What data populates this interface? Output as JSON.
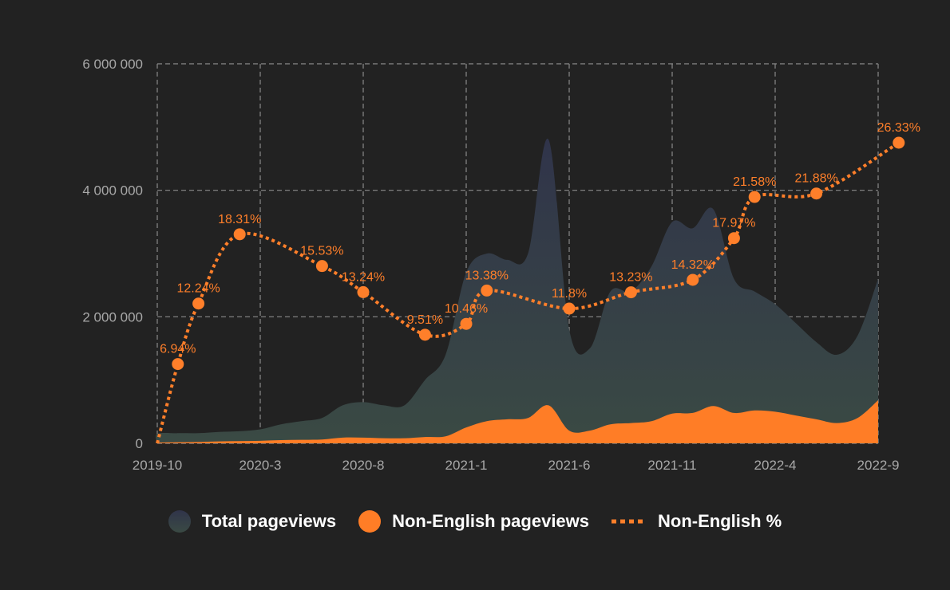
{
  "chart_data": {
    "type": "area",
    "y_axis": {
      "ticks": [
        "0",
        "2 000 000",
        "4 000 000",
        "6 000 000"
      ],
      "tick_values": [
        0,
        2000000,
        4000000,
        6000000
      ],
      "ylim": [
        0,
        6000000
      ]
    },
    "x_axis": {
      "ticks": [
        "2019-10",
        "2020-3",
        "2020-8",
        "2021-1",
        "2021-6",
        "2021-11",
        "2022-4",
        "2022-9"
      ],
      "range": [
        "2019-10",
        "2022-9"
      ]
    },
    "grid": true,
    "legend_position": "bottom-center",
    "colors": {
      "total_top": "#30344a",
      "total_bottom": "#3a4a44",
      "non_english": "#ff7d26",
      "pct_line": "#ff7f2a"
    },
    "series": [
      {
        "name": "Total pageviews",
        "type": "area",
        "x": [
          "2019-10",
          "2019-11",
          "2019-12",
          "2020-1",
          "2020-2",
          "2020-3",
          "2020-4",
          "2020-5",
          "2020-6",
          "2020-7",
          "2020-8",
          "2020-9",
          "2020-10",
          "2020-11",
          "2020-12",
          "2021-1",
          "2021-2",
          "2021-3",
          "2021-4",
          "2021-5",
          "2021-6",
          "2021-7",
          "2021-8",
          "2021-9",
          "2021-10",
          "2021-11",
          "2021-12",
          "2022-1",
          "2022-2",
          "2022-3",
          "2022-4",
          "2022-5",
          "2022-6",
          "2022-7",
          "2022-8",
          "2022-9"
        ],
        "values": [
          150000,
          160000,
          160000,
          180000,
          190000,
          220000,
          300000,
          350000,
          400000,
          600000,
          650000,
          600000,
          600000,
          1000000,
          1400000,
          2700000,
          3000000,
          2900000,
          3000000,
          4800000,
          1800000,
          1500000,
          2400000,
          2400000,
          2800000,
          3500000,
          3400000,
          3700000,
          2600000,
          2400000,
          2200000,
          1900000,
          1600000,
          1400000,
          1700000,
          2600000
        ]
      },
      {
        "name": "Non-English pageviews",
        "type": "area",
        "x": [
          "2019-10",
          "2019-11",
          "2019-12",
          "2020-1",
          "2020-2",
          "2020-3",
          "2020-4",
          "2020-5",
          "2020-6",
          "2020-7",
          "2020-8",
          "2020-9",
          "2020-10",
          "2020-11",
          "2020-12",
          "2021-1",
          "2021-2",
          "2021-3",
          "2021-4",
          "2021-5",
          "2021-6",
          "2021-7",
          "2021-8",
          "2021-9",
          "2021-10",
          "2021-11",
          "2021-12",
          "2022-1",
          "2022-2",
          "2022-3",
          "2022-4",
          "2022-5",
          "2022-6",
          "2022-7",
          "2022-8",
          "2022-9"
        ],
        "values": [
          10000,
          15000,
          20000,
          30000,
          35000,
          40000,
          50000,
          55000,
          60000,
          90000,
          90000,
          80000,
          80000,
          100000,
          110000,
          250000,
          350000,
          380000,
          400000,
          600000,
          200000,
          200000,
          300000,
          320000,
          350000,
          470000,
          480000,
          590000,
          480000,
          520000,
          500000,
          440000,
          380000,
          320000,
          400000,
          680000
        ]
      },
      {
        "name": "Non-English %",
        "type": "line",
        "x": [
          "2019-11",
          "2019-12",
          "2020-2",
          "2020-6",
          "2020-8",
          "2020-11",
          "2021-1",
          "2021-2",
          "2021-6",
          "2021-9",
          "2021-12",
          "2022-2",
          "2022-3",
          "2022-6",
          "2022-10"
        ],
        "values": [
          6.94,
          12.24,
          18.31,
          15.53,
          13.24,
          9.51,
          10.46,
          13.38,
          11.8,
          13.23,
          14.32,
          17.97,
          21.58,
          21.88,
          26.33
        ],
        "labels": [
          "6.94%",
          "12.24%",
          "18.31%",
          "15.53%",
          "13.24%",
          "9.51%",
          "10.46%",
          "13.38%",
          "11.8%",
          "13.23%",
          "14.32%",
          "17.97%",
          "21.58%",
          "21.88%",
          "26.33%"
        ]
      }
    ]
  },
  "legend": {
    "total_label": "Total pageviews",
    "non_english_label": "Non-English pageviews",
    "pct_label": "Non-English %"
  }
}
